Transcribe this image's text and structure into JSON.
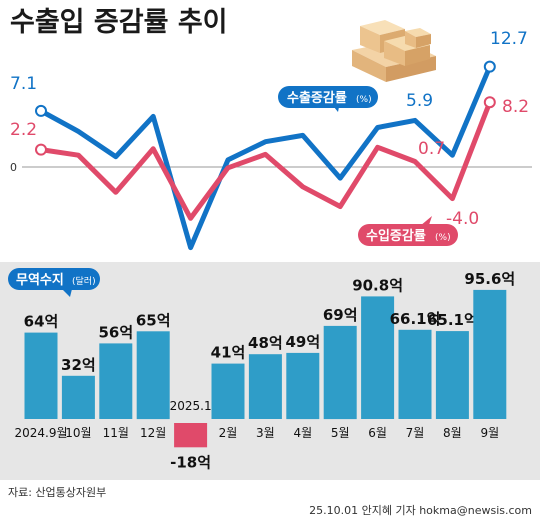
{
  "title": "수출입 증감률 추이",
  "source": "자료: 산업통상자원부",
  "credit": "25.10.01  안지혜  기자  hokma@newsis.com",
  "colors": {
    "export": "#1173c6",
    "import": "#e04a6a",
    "bar": "#2f9dc8",
    "negative_bar": "#e04a6a",
    "panel": "#e6e6e6"
  },
  "chart_data": [
    {
      "type": "line",
      "zero_label": "0",
      "x": [
        "2024.9",
        "10",
        "11",
        "12",
        "2025.1",
        "2",
        "3",
        "4",
        "5",
        "6",
        "7",
        "8",
        "9"
      ],
      "series": [
        {
          "name": "수출증감률",
          "unit": "(%)",
          "values": [
            7.1,
            4.5,
            1.3,
            6.4,
            -10.2,
            0.9,
            3.2,
            4.0,
            -1.4,
            5.0,
            5.9,
            1.5,
            12.7
          ],
          "labels": [
            {
              "index": 0,
              "text": "7.1"
            },
            {
              "index": 10,
              "text": "5.9"
            },
            {
              "index": 12,
              "text": "12.7"
            }
          ]
        },
        {
          "name": "수입증감률",
          "unit": "(%)",
          "values": [
            2.2,
            1.5,
            -3.2,
            2.3,
            -6.5,
            -0.1,
            1.6,
            -2.5,
            -5.0,
            2.5,
            0.7,
            -4.0,
            8.2
          ],
          "labels": [
            {
              "index": 0,
              "text": "2.2"
            },
            {
              "index": 10,
              "text": "0.7"
            },
            {
              "index": 11,
              "text": "-4.0"
            },
            {
              "index": 12,
              "text": "8.2"
            }
          ]
        }
      ],
      "ylim": [
        -12,
        15
      ]
    },
    {
      "type": "bar",
      "legend": "무역수지",
      "legend_unit": "(달러)",
      "categories": [
        "2024.9월",
        "10월",
        "11월",
        "12월",
        "2025.1",
        "2월",
        "3월",
        "4월",
        "5월",
        "6월",
        "7월",
        "8월",
        "9월"
      ],
      "values": [
        64,
        32,
        56,
        65,
        -18,
        41,
        48,
        49,
        69,
        90.8,
        66.1,
        65.1,
        95.6
      ],
      "labels": [
        "64억",
        "32억",
        "56억",
        "65억",
        "-18억",
        "41억",
        "48억",
        "49억",
        "69억",
        "90.8억",
        "66.1억",
        "65.1억",
        "95.6억"
      ],
      "ylim": [
        -25,
        100
      ]
    }
  ]
}
